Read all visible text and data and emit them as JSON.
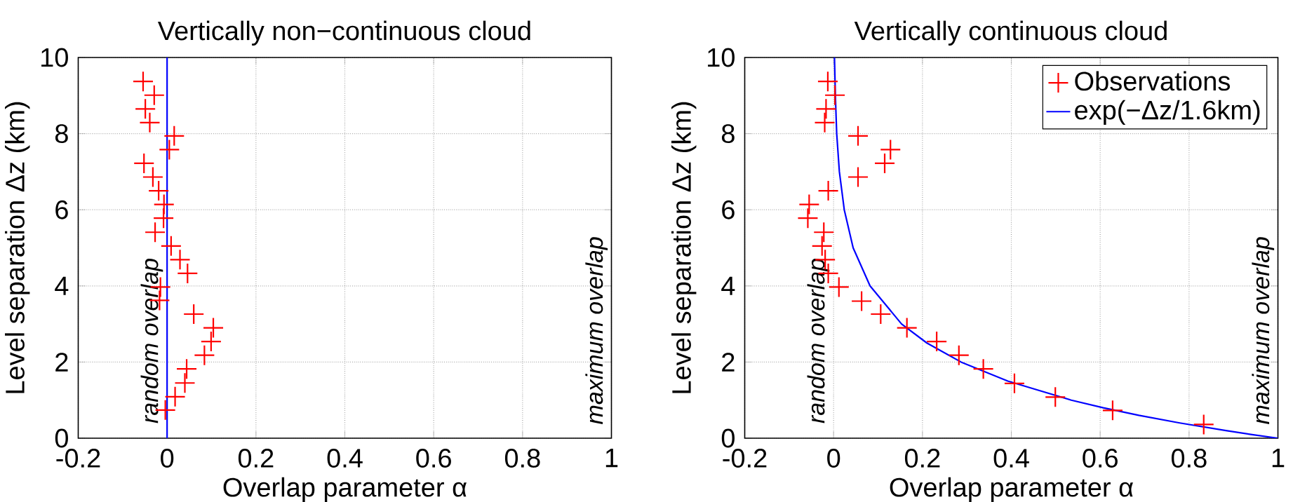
{
  "chart_data": [
    {
      "type": "scatter",
      "title": "Vertically non−continuous cloud",
      "xlabel": "Overlap parameter α",
      "ylabel": "Level separation Δz (km)",
      "xlim": [
        -0.2,
        1
      ],
      "xticks": [
        -0.2,
        0,
        0.2,
        0.4,
        0.6,
        0.8,
        1
      ],
      "ylim": [
        0,
        10
      ],
      "yticks": [
        0,
        2,
        4,
        6,
        8,
        10
      ],
      "grid": true,
      "marker": "cross",
      "series": [
        {
          "color": "#ff0000",
          "x": [
            -0.054,
            -0.029,
            -0.049,
            -0.039,
            0.016,
            0.005,
            -0.052,
            -0.032,
            -0.019,
            -0.007,
            -0.008,
            -0.027,
            0.009,
            0.029,
            0.046,
            -0.015,
            -0.017,
            0.06,
            0.104,
            0.099,
            0.084,
            0.044,
            0.04,
            0.018,
            -0.004
          ],
          "values": [
            9.37,
            9.01,
            8.65,
            8.29,
            7.94,
            7.58,
            7.22,
            6.86,
            6.5,
            6.14,
            5.78,
            5.41,
            5.05,
            4.69,
            4.33,
            3.97,
            3.62,
            3.26,
            2.9,
            2.54,
            2.18,
            1.82,
            1.45,
            1.09,
            0.74
          ]
        }
      ],
      "ref_lines": [
        {
          "axis": "x",
          "value": 0,
          "color": "#0000ff"
        }
      ],
      "annotations": [
        "random overlap",
        "maximum overlap"
      ]
    },
    {
      "type": "scatter",
      "title": "Vertically continuous cloud",
      "xlabel": "Overlap parameter α",
      "ylabel": "Level separation Δz (km)",
      "xlim": [
        -0.2,
        1
      ],
      "xticks": [
        -0.2,
        0,
        0.2,
        0.4,
        0.6,
        0.8,
        1
      ],
      "ylim": [
        0,
        10
      ],
      "yticks": [
        0,
        2,
        4,
        6,
        8,
        10
      ],
      "grid": true,
      "marker": "cross",
      "legend": "top right",
      "series": [
        {
          "name": "Observations",
          "color": "#ff0000",
          "x": [
            -0.013,
            0.003,
            -0.017,
            -0.02,
            0.055,
            0.128,
            0.115,
            0.055,
            -0.012,
            -0.055,
            -0.058,
            -0.022,
            -0.026,
            -0.019,
            -0.012,
            0.012,
            0.063,
            0.106,
            0.165,
            0.232,
            0.282,
            0.337,
            0.407,
            0.499,
            0.628,
            0.833
          ],
          "values": [
            9.37,
            9.01,
            8.65,
            8.29,
            7.94,
            7.58,
            7.22,
            6.86,
            6.5,
            6.14,
            5.78,
            5.41,
            5.05,
            4.69,
            4.33,
            3.97,
            3.6,
            3.26,
            2.9,
            2.54,
            2.18,
            1.82,
            1.44,
            1.08,
            0.73,
            0.36
          ]
        },
        {
          "type": "line",
          "name": "exp(−Δz/1.6km)",
          "color": "#0000ff",
          "marker": "none",
          "x": [
            1,
            0.939,
            0.883,
            0.779,
            0.687,
            0.607,
            0.535,
            0.392,
            0.287,
            0.21,
            0.153,
            0.082,
            0.044,
            0.024,
            0.013,
            0.007,
            0.004,
            0.002
          ],
          "values": [
            0,
            0.1,
            0.2,
            0.4,
            0.6,
            0.8,
            1,
            1.5,
            2,
            2.5,
            3,
            4,
            5,
            6,
            7,
            8,
            9,
            10
          ]
        }
      ],
      "annotations": [
        "random overlap",
        "maximum overlap"
      ]
    }
  ]
}
